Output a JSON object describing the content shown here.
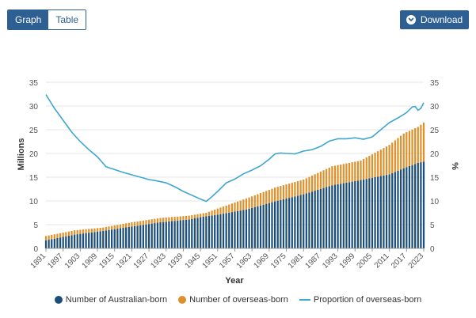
{
  "toolbar": {
    "graph_label": "Graph",
    "table_label": "Table",
    "download_label": "Download"
  },
  "colors": {
    "accent": "#2e5f93",
    "australian_born": "#1b4e79",
    "overseas_born": "#e0902a",
    "proportion": "#3ea6cf"
  },
  "chart_data": {
    "type": "bar",
    "title": "",
    "xlabel": "Year",
    "ylabel_left": "Millions",
    "ylabel_right": "%",
    "ylim_left": [
      0,
      35
    ],
    "ylim_right": [
      0,
      35
    ],
    "y_ticks": [
      0,
      5,
      10,
      15,
      20,
      25,
      30,
      35
    ],
    "x_tick_labels": [
      "1891",
      "1897",
      "1903",
      "1909",
      "1915",
      "1921",
      "1927",
      "1933",
      "1939",
      "1945",
      "1951",
      "1957",
      "1963",
      "1969",
      "1975",
      "1981",
      "1987",
      "1993",
      "1999",
      "2005",
      "2011",
      "2017",
      "2023"
    ],
    "grid": true,
    "legend_position": "bottom",
    "stacked": true,
    "series": [
      {
        "name": "Number of Australian-born",
        "type": "bar",
        "points": [
          [
            1891,
            1.7
          ],
          [
            1901,
            2.9
          ],
          [
            1911,
            3.7
          ],
          [
            1921,
            4.6
          ],
          [
            1931,
            5.5
          ],
          [
            1941,
            6.1
          ],
          [
            1947,
            6.8
          ],
          [
            1951,
            7.1
          ],
          [
            1961,
            8.2
          ],
          [
            1971,
            9.9
          ],
          [
            1981,
            11.4
          ],
          [
            1991,
            13.3
          ],
          [
            2001,
            14.4
          ],
          [
            2011,
            15.6
          ],
          [
            2016,
            16.9
          ],
          [
            2021,
            18.0
          ],
          [
            2023,
            18.3
          ]
        ]
      },
      {
        "name": "Number of overseas-born",
        "type": "bar",
        "points": [
          [
            1891,
            0.9
          ],
          [
            1901,
            0.9
          ],
          [
            1911,
            0.7
          ],
          [
            1921,
            0.9
          ],
          [
            1931,
            0.9
          ],
          [
            1941,
            0.8
          ],
          [
            1947,
            0.7
          ],
          [
            1951,
            1.3
          ],
          [
            1961,
            2.3
          ],
          [
            1971,
            2.9
          ],
          [
            1981,
            3.1
          ],
          [
            1991,
            4.0
          ],
          [
            2001,
            4.1
          ],
          [
            2011,
            6.2
          ],
          [
            2016,
            7.3
          ],
          [
            2021,
            7.6
          ],
          [
            2023,
            8.2
          ]
        ]
      },
      {
        "name": "Proportion of overseas-born",
        "type": "line",
        "axis": "right",
        "points": [
          [
            1891,
            32.4
          ],
          [
            1894,
            29.5
          ],
          [
            1897,
            27.0
          ],
          [
            1900,
            24.5
          ],
          [
            1903,
            22.5
          ],
          [
            1906,
            20.8
          ],
          [
            1909,
            19.3
          ],
          [
            1912,
            17.2
          ],
          [
            1915,
            16.6
          ],
          [
            1918,
            16.0
          ],
          [
            1921,
            15.5
          ],
          [
            1924,
            15.0
          ],
          [
            1927,
            14.5
          ],
          [
            1930,
            14.2
          ],
          [
            1933,
            13.8
          ],
          [
            1936,
            13.0
          ],
          [
            1939,
            12.0
          ],
          [
            1942,
            11.2
          ],
          [
            1945,
            10.4
          ],
          [
            1947,
            9.9
          ],
          [
            1949,
            10.9
          ],
          [
            1951,
            12.0
          ],
          [
            1954,
            13.8
          ],
          [
            1957,
            14.6
          ],
          [
            1960,
            15.7
          ],
          [
            1963,
            16.5
          ],
          [
            1966,
            17.4
          ],
          [
            1969,
            18.8
          ],
          [
            1971,
            19.9
          ],
          [
            1973,
            20.1
          ],
          [
            1975,
            20.0
          ],
          [
            1978,
            19.9
          ],
          [
            1981,
            20.5
          ],
          [
            1984,
            20.8
          ],
          [
            1987,
            21.5
          ],
          [
            1990,
            22.6
          ],
          [
            1993,
            23.1
          ],
          [
            1996,
            23.1
          ],
          [
            1999,
            23.3
          ],
          [
            2002,
            23.0
          ],
          [
            2005,
            23.5
          ],
          [
            2008,
            25.0
          ],
          [
            2011,
            26.5
          ],
          [
            2014,
            27.5
          ],
          [
            2017,
            28.6
          ],
          [
            2019,
            29.8
          ],
          [
            2020,
            29.9
          ],
          [
            2021,
            29.1
          ],
          [
            2022,
            29.5
          ],
          [
            2023,
            30.7
          ]
        ]
      }
    ]
  }
}
